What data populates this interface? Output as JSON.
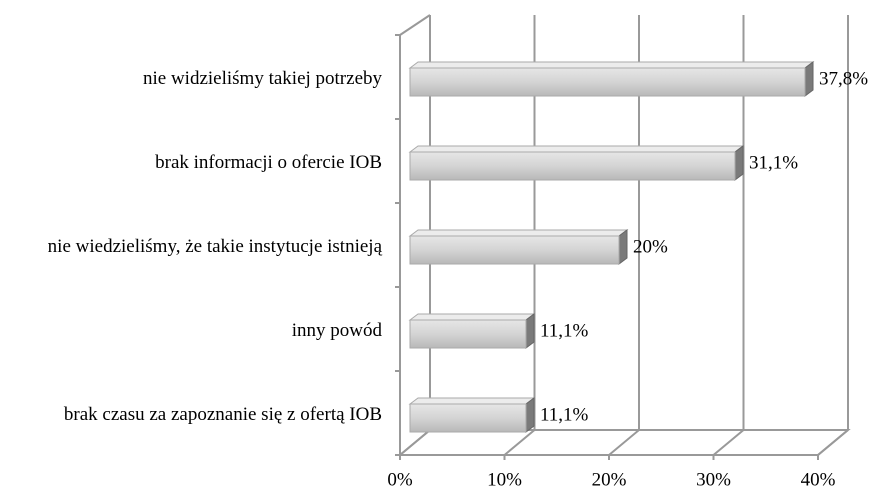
{
  "chart_data": {
    "type": "bar",
    "orientation": "horizontal",
    "categories": [
      "nie widzieliśmy  takiej potrzeby",
      "brak informacji o ofercie IOB",
      "nie wiedzieliśmy, że takie instytucje istnieją",
      "inny powód",
      "brak czasu za zapoznanie się z ofertą IOB"
    ],
    "values": [
      37.8,
      31.1,
      20,
      11.1,
      11.1
    ],
    "value_labels": [
      "37,8%",
      "31,1%",
      "20%",
      "11,1%",
      "11,1%"
    ],
    "color": "#d4d4d4",
    "xlim": [
      0,
      40
    ],
    "xticks": [
      {
        "value": 0,
        "label": "0%"
      },
      {
        "value": 10,
        "label": "10%"
      },
      {
        "value": 20,
        "label": "20%"
      },
      {
        "value": 30,
        "label": "30%"
      },
      {
        "value": 40,
        "label": "40%"
      }
    ],
    "grid": true
  }
}
